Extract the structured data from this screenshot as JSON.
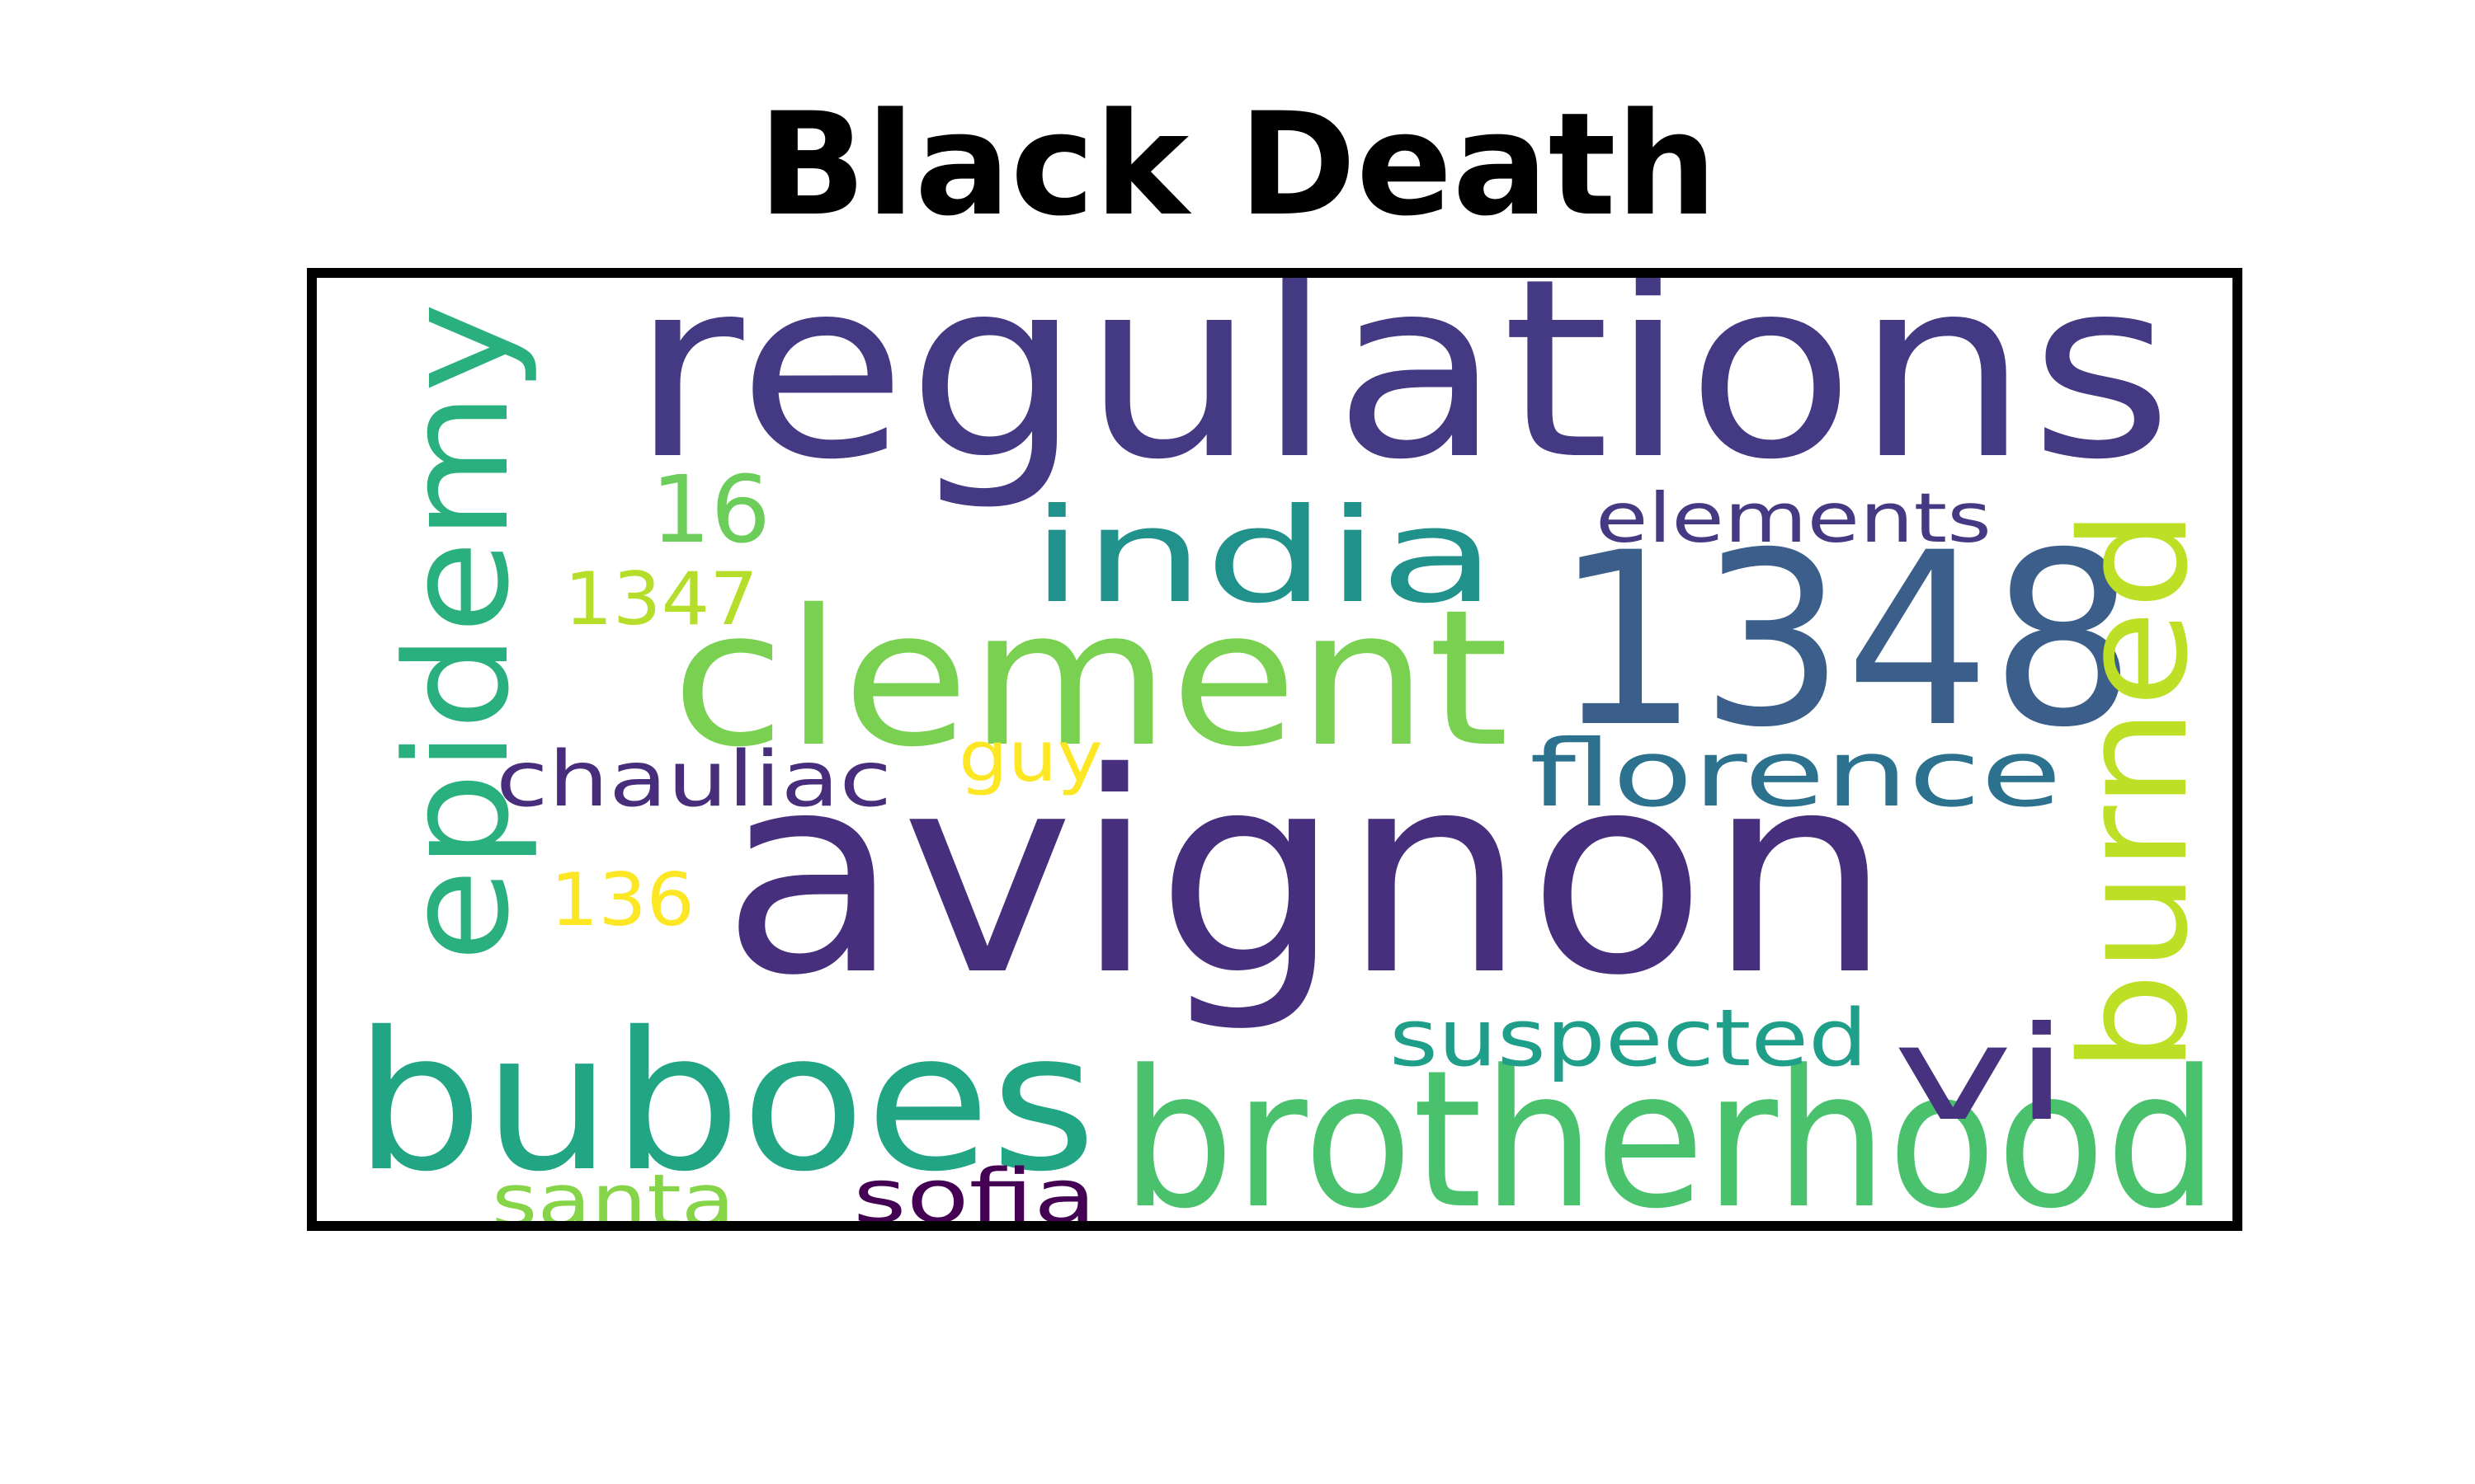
{
  "title": "Black Death",
  "words": [
    {
      "text": "avignon",
      "color": "#472f7d"
    },
    {
      "text": "regulations",
      "color": "#443a83"
    },
    {
      "text": "1348",
      "color": "#3b5f8a"
    },
    {
      "text": "clement",
      "color": "#7ad151"
    },
    {
      "text": "brotherhood",
      "color": "#4ac16d"
    },
    {
      "text": "buboes",
      "color": "#21a585"
    },
    {
      "text": "epidemy",
      "color": "#2ab07f"
    },
    {
      "text": "burned",
      "color": "#bddf26"
    },
    {
      "text": "india",
      "color": "#21918c"
    },
    {
      "text": "vi",
      "color": "#46327e"
    },
    {
      "text": "florence",
      "color": "#2c728e"
    },
    {
      "text": "suspected",
      "color": "#1f9e89"
    },
    {
      "text": "elements",
      "color": "#443983"
    },
    {
      "text": "16",
      "color": "#6ccd5a"
    },
    {
      "text": "chauliac",
      "color": "#472d7b"
    },
    {
      "text": "sofia",
      "color": "#440154"
    },
    {
      "text": "santa",
      "color": "#86d549"
    },
    {
      "text": "1347",
      "color": "#b5de2b"
    },
    {
      "text": "guy",
      "color": "#fde725"
    },
    {
      "text": "136",
      "color": "#fde725"
    }
  ]
}
